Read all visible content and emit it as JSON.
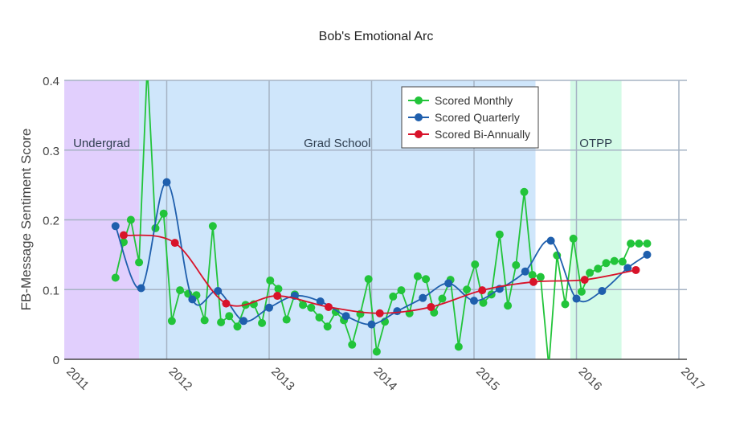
{
  "chart_data": {
    "type": "line",
    "title": "Bob's Emotional Arc",
    "xlabel": "",
    "ylabel": "FB-Message Sentiment Score",
    "x_ticks": [
      "2011",
      "2012",
      "2013",
      "2014",
      "2015",
      "2016",
      "2017"
    ],
    "y_ticks": [
      "0",
      "0.1",
      "0.2",
      "0.3",
      "0.4"
    ],
    "xlim": [
      2011.0,
      2017.0
    ],
    "ylim": [
      0,
      0.4
    ],
    "grid": true,
    "legend_position": "top-center",
    "regions": [
      {
        "label": "Undergrad",
        "x0": 2011.0,
        "x1": 2011.73,
        "color": "#e1cffd"
      },
      {
        "label": "Grad School",
        "x0": 2011.73,
        "x1": 2015.6,
        "color": "#cfe6fb"
      },
      {
        "label": "OTPP",
        "x0": 2015.94,
        "x1": 2016.44,
        "color": "#d4fbe7"
      }
    ],
    "series": [
      {
        "name": "Scored Monthly",
        "color": "#22c43a",
        "x": [
          2011.5,
          2011.58,
          2011.65,
          2011.73,
          2011.81,
          2011.89,
          2011.97,
          2012.05,
          2012.13,
          2012.21,
          2012.29,
          2012.37,
          2012.45,
          2012.53,
          2012.61,
          2012.69,
          2012.77,
          2012.85,
          2012.93,
          2013.01,
          2013.09,
          2013.17,
          2013.25,
          2013.33,
          2013.41,
          2013.49,
          2013.57,
          2013.65,
          2013.73,
          2013.81,
          2013.89,
          2013.97,
          2014.05,
          2014.13,
          2014.21,
          2014.29,
          2014.37,
          2014.45,
          2014.53,
          2014.61,
          2014.69,
          2014.77,
          2014.85,
          2014.93,
          2015.01,
          2015.09,
          2015.17,
          2015.25,
          2015.33,
          2015.41,
          2015.49,
          2015.57,
          2015.65,
          2015.73,
          2015.81,
          2015.89,
          2015.97,
          2016.05,
          2016.13,
          2016.21,
          2016.29,
          2016.37,
          2016.45,
          2016.53,
          2016.61,
          2016.69
        ],
        "values": [
          0.117,
          0.168,
          0.2,
          0.139,
          0.42,
          0.188,
          0.209,
          0.055,
          0.099,
          0.094,
          0.092,
          0.056,
          0.191,
          0.053,
          0.062,
          0.047,
          0.078,
          0.079,
          0.052,
          0.113,
          0.101,
          0.057,
          0.093,
          0.078,
          0.074,
          0.06,
          0.047,
          0.068,
          0.056,
          0.021,
          0.065,
          0.115,
          0.011,
          0.054,
          0.09,
          0.099,
          0.066,
          0.119,
          0.115,
          0.067,
          0.087,
          0.114,
          0.018,
          0.1,
          0.136,
          0.081,
          0.093,
          0.179,
          0.077,
          0.135,
          0.24,
          0.121,
          0.118,
          -0.01,
          0.149,
          0.079,
          0.173,
          0.097,
          0.124,
          0.13,
          0.138,
          0.141,
          0.14,
          0.166,
          0.166,
          0.166
        ]
      },
      {
        "name": "Scored Quarterly",
        "color": "#1f5fad",
        "x": [
          2011.5,
          2011.75,
          2012.0,
          2012.25,
          2012.5,
          2012.75,
          2013.0,
          2013.25,
          2013.5,
          2013.75,
          2014.0,
          2014.25,
          2014.5,
          2014.75,
          2015.0,
          2015.25,
          2015.5,
          2015.75,
          2016.0,
          2016.25,
          2016.5,
          2016.69
        ],
        "values": [
          0.191,
          0.102,
          0.254,
          0.086,
          0.098,
          0.055,
          0.074,
          0.091,
          0.083,
          0.062,
          0.05,
          0.069,
          0.088,
          0.109,
          0.084,
          0.101,
          0.126,
          0.17,
          0.087,
          0.098,
          0.131,
          0.15
        ]
      },
      {
        "name": "Scored Bi-Annually",
        "color": "#d8132a",
        "x": [
          2011.58,
          2012.08,
          2012.58,
          2013.08,
          2013.58,
          2014.08,
          2014.58,
          2015.08,
          2015.58,
          2016.08,
          2016.58
        ],
        "values": [
          0.178,
          0.167,
          0.08,
          0.091,
          0.075,
          0.066,
          0.075,
          0.099,
          0.111,
          0.114,
          0.128
        ]
      }
    ]
  }
}
